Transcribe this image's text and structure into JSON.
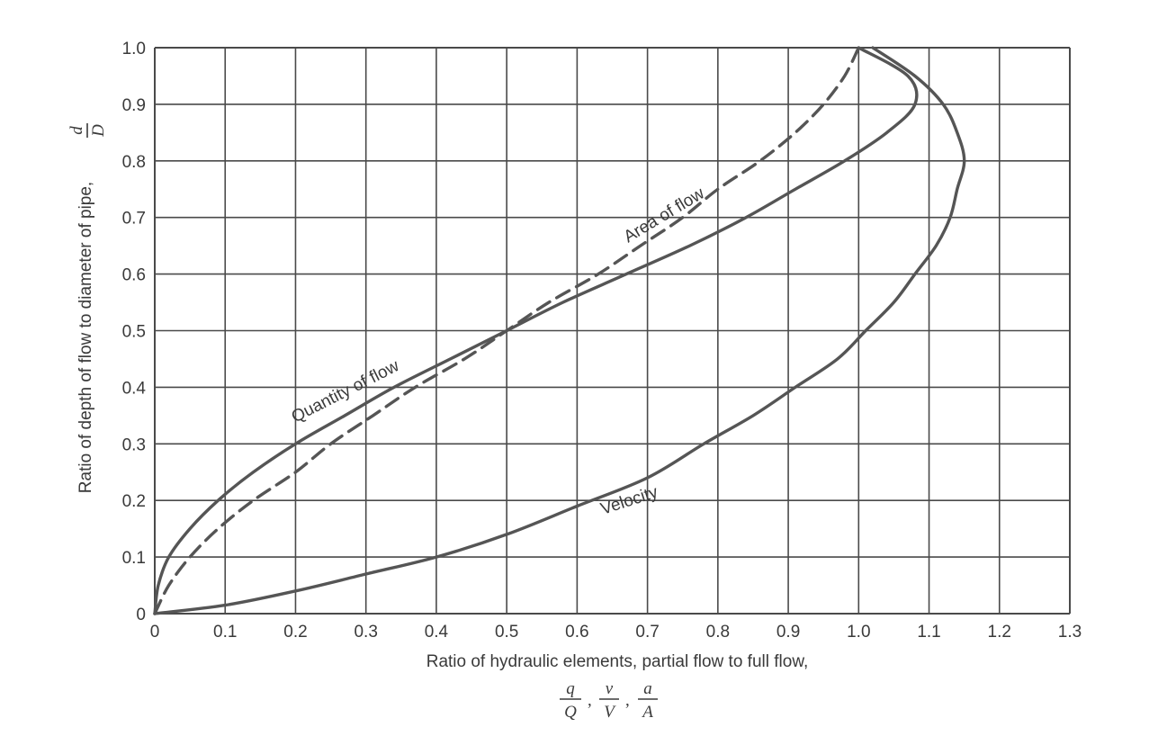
{
  "chart_data": {
    "type": "line",
    "title": "",
    "xlabel": "Ratio of hydraulic elements, partial flow to full flow,",
    "xlabel_symbols": [
      {
        "num": "q",
        "den": "Q"
      },
      {
        "num": "v",
        "den": "V"
      },
      {
        "num": "a",
        "den": "A"
      }
    ],
    "ylabel": "Ratio of depth of flow to diameter of pipe,",
    "ylabel_symbol": {
      "num": "d",
      "den": "D"
    },
    "xlim": [
      0,
      1.3
    ],
    "ylim": [
      0,
      1.0
    ],
    "x_ticks": [
      "0",
      "0.1",
      "0.2",
      "0.3",
      "0.4",
      "0.5",
      "0.6",
      "0.7",
      "0.8",
      "0.9",
      "1.0",
      "1.1",
      "1.2",
      "1.3"
    ],
    "y_ticks": [
      "0",
      "0.1",
      "0.2",
      "0.3",
      "0.4",
      "0.5",
      "0.6",
      "0.7",
      "0.8",
      "0.9",
      "1.0"
    ],
    "grid": true,
    "legend": "none",
    "series": [
      {
        "name": "Quantity of flow",
        "style": "solid",
        "color": "#555555",
        "points": [
          [
            0,
            0
          ],
          [
            0.005,
            0.05
          ],
          [
            0.02,
            0.1
          ],
          [
            0.05,
            0.15
          ],
          [
            0.09,
            0.2
          ],
          [
            0.14,
            0.25
          ],
          [
            0.2,
            0.3
          ],
          [
            0.27,
            0.35
          ],
          [
            0.34,
            0.4
          ],
          [
            0.42,
            0.45
          ],
          [
            0.5,
            0.5
          ],
          [
            0.58,
            0.55
          ],
          [
            0.67,
            0.6
          ],
          [
            0.76,
            0.65
          ],
          [
            0.84,
            0.7
          ],
          [
            0.91,
            0.75
          ],
          [
            0.98,
            0.8
          ],
          [
            1.04,
            0.85
          ],
          [
            1.08,
            0.9
          ],
          [
            1.07,
            0.95
          ],
          [
            1.0,
            1.0
          ]
        ]
      },
      {
        "name": "Area of flow",
        "style": "dashed",
        "color": "#555555",
        "points": [
          [
            0,
            0
          ],
          [
            0.02,
            0.05
          ],
          [
            0.05,
            0.1
          ],
          [
            0.09,
            0.15
          ],
          [
            0.14,
            0.2
          ],
          [
            0.2,
            0.25
          ],
          [
            0.25,
            0.3
          ],
          [
            0.31,
            0.35
          ],
          [
            0.37,
            0.4
          ],
          [
            0.44,
            0.45
          ],
          [
            0.5,
            0.5
          ],
          [
            0.56,
            0.55
          ],
          [
            0.63,
            0.6
          ],
          [
            0.69,
            0.65
          ],
          [
            0.75,
            0.7
          ],
          [
            0.8,
            0.75
          ],
          [
            0.86,
            0.8
          ],
          [
            0.91,
            0.85
          ],
          [
            0.95,
            0.9
          ],
          [
            0.98,
            0.95
          ],
          [
            1.0,
            1.0
          ]
        ]
      },
      {
        "name": "Velocity",
        "style": "solid",
        "color": "#555555",
        "points": [
          [
            0,
            0
          ],
          [
            0.1,
            0.015
          ],
          [
            0.2,
            0.04
          ],
          [
            0.3,
            0.07
          ],
          [
            0.4,
            0.1
          ],
          [
            0.5,
            0.14
          ],
          [
            0.6,
            0.19
          ],
          [
            0.7,
            0.24
          ],
          [
            0.78,
            0.3
          ],
          [
            0.85,
            0.35
          ],
          [
            0.91,
            0.4
          ],
          [
            0.97,
            0.45
          ],
          [
            1.01,
            0.5
          ],
          [
            1.05,
            0.55
          ],
          [
            1.08,
            0.6
          ],
          [
            1.11,
            0.65
          ],
          [
            1.13,
            0.7
          ],
          [
            1.14,
            0.75
          ],
          [
            1.15,
            0.8
          ],
          [
            1.14,
            0.85
          ],
          [
            1.12,
            0.9
          ],
          [
            1.08,
            0.95
          ],
          [
            1.02,
            1.0
          ]
        ]
      }
    ],
    "annotations": [
      "Quantity of flow",
      "Area of flow",
      "Velocity"
    ]
  }
}
